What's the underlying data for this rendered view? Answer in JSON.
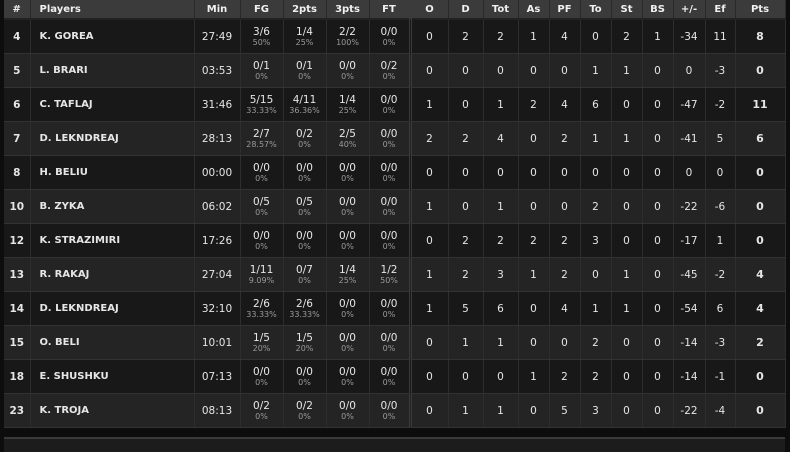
{
  "columns": [
    "#",
    "Players",
    "Min",
    "FG",
    "2pts",
    "3pts",
    "FT",
    "O",
    "D",
    "Tot",
    "As",
    "PF",
    "To",
    "St",
    "BS",
    "+/-",
    "Ef",
    "Pts"
  ],
  "rows": [
    {
      "no": "4",
      "name": "K. GOREA",
      "min": "27:49",
      "fg": "3/6",
      "fg_pct": "50%",
      "p2": "1/4",
      "p2_pct": "25%",
      "p3": "2/2",
      "p3_pct": "100%",
      "ft": "0/0",
      "ft_pct": "0%",
      "o": "0",
      "d": "2",
      "tot": "2",
      "as": "1",
      "pf": "4",
      "to": "0",
      "st": "2",
      "bs": "1",
      "pm": "-34",
      "ef": "11",
      "pts": "8"
    },
    {
      "no": "5",
      "name": "L. BRARI",
      "min": "03:53",
      "fg": "0/1",
      "fg_pct": "0%",
      "p2": "0/1",
      "p2_pct": "0%",
      "p3": "0/0",
      "p3_pct": "0%",
      "ft": "0/2",
      "ft_pct": "0%",
      "o": "0",
      "d": "0",
      "tot": "0",
      "as": "0",
      "pf": "0",
      "to": "1",
      "st": "1",
      "bs": "0",
      "pm": "0",
      "ef": "-3",
      "pts": "0"
    },
    {
      "no": "6",
      "name": "C. TAFLAJ",
      "min": "31:46",
      "fg": "5/15",
      "fg_pct": "33.33%",
      "p2": "4/11",
      "p2_pct": "36.36%",
      "p3": "1/4",
      "p3_pct": "25%",
      "ft": "0/0",
      "ft_pct": "0%",
      "o": "1",
      "d": "0",
      "tot": "1",
      "as": "2",
      "pf": "4",
      "to": "6",
      "st": "0",
      "bs": "0",
      "pm": "-47",
      "ef": "-2",
      "pts": "11"
    },
    {
      "no": "7",
      "name": "D. LEKNDREAJ",
      "min": "28:13",
      "fg": "2/7",
      "fg_pct": "28.57%",
      "p2": "0/2",
      "p2_pct": "0%",
      "p3": "2/5",
      "p3_pct": "40%",
      "ft": "0/0",
      "ft_pct": "0%",
      "o": "2",
      "d": "2",
      "tot": "4",
      "as": "0",
      "pf": "2",
      "to": "1",
      "st": "1",
      "bs": "0",
      "pm": "-41",
      "ef": "5",
      "pts": "6"
    },
    {
      "no": "8",
      "name": "H. BELIU",
      "min": "00:00",
      "fg": "0/0",
      "fg_pct": "0%",
      "p2": "0/0",
      "p2_pct": "0%",
      "p3": "0/0",
      "p3_pct": "0%",
      "ft": "0/0",
      "ft_pct": "0%",
      "o": "0",
      "d": "0",
      "tot": "0",
      "as": "0",
      "pf": "0",
      "to": "0",
      "st": "0",
      "bs": "0",
      "pm": "0",
      "ef": "0",
      "pts": "0"
    },
    {
      "no": "10",
      "name": "B. ZYKA",
      "min": "06:02",
      "fg": "0/5",
      "fg_pct": "0%",
      "p2": "0/5",
      "p2_pct": "0%",
      "p3": "0/0",
      "p3_pct": "0%",
      "ft": "0/0",
      "ft_pct": "0%",
      "o": "1",
      "d": "0",
      "tot": "1",
      "as": "0",
      "pf": "0",
      "to": "2",
      "st": "0",
      "bs": "0",
      "pm": "-22",
      "ef": "-6",
      "pts": "0"
    },
    {
      "no": "12",
      "name": "K. STRAZIMIRI",
      "min": "17:26",
      "fg": "0/0",
      "fg_pct": "0%",
      "p2": "0/0",
      "p2_pct": "0%",
      "p3": "0/0",
      "p3_pct": "0%",
      "ft": "0/0",
      "ft_pct": "0%",
      "o": "0",
      "d": "2",
      "tot": "2",
      "as": "2",
      "pf": "2",
      "to": "3",
      "st": "0",
      "bs": "0",
      "pm": "-17",
      "ef": "1",
      "pts": "0"
    },
    {
      "no": "13",
      "name": "R. RAKAJ",
      "min": "27:04",
      "fg": "1/11",
      "fg_pct": "9.09%",
      "p2": "0/7",
      "p2_pct": "0%",
      "p3": "1/4",
      "p3_pct": "25%",
      "ft": "1/2",
      "ft_pct": "50%",
      "o": "1",
      "d": "2",
      "tot": "3",
      "as": "1",
      "pf": "2",
      "to": "0",
      "st": "1",
      "bs": "0",
      "pm": "-45",
      "ef": "-2",
      "pts": "4"
    },
    {
      "no": "14",
      "name": "D. LEKNDREAJ",
      "min": "32:10",
      "fg": "2/6",
      "fg_pct": "33.33%",
      "p2": "2/6",
      "p2_pct": "33.33%",
      "p3": "0/0",
      "p3_pct": "0%",
      "ft": "0/0",
      "ft_pct": "0%",
      "o": "1",
      "d": "5",
      "tot": "6",
      "as": "0",
      "pf": "4",
      "to": "1",
      "st": "1",
      "bs": "0",
      "pm": "-54",
      "ef": "6",
      "pts": "4"
    },
    {
      "no": "15",
      "name": "O. BELI",
      "min": "10:01",
      "fg": "1/5",
      "fg_pct": "20%",
      "p2": "1/5",
      "p2_pct": "20%",
      "p3": "0/0",
      "p3_pct": "0%",
      "ft": "0/0",
      "ft_pct": "0%",
      "o": "0",
      "d": "1",
      "tot": "1",
      "as": "0",
      "pf": "0",
      "to": "2",
      "st": "0",
      "bs": "0",
      "pm": "-14",
      "ef": "-3",
      "pts": "2"
    },
    {
      "no": "18",
      "name": "E. SHUSHKU",
      "min": "07:13",
      "fg": "0/0",
      "fg_pct": "0%",
      "p2": "0/0",
      "p2_pct": "0%",
      "p3": "0/0",
      "p3_pct": "0%",
      "ft": "0/0",
      "ft_pct": "0%",
      "o": "0",
      "d": "0",
      "tot": "0",
      "as": "1",
      "pf": "2",
      "to": "2",
      "st": "0",
      "bs": "0",
      "pm": "-14",
      "ef": "-1",
      "pts": "0"
    },
    {
      "no": "23",
      "name": "K. TROJA",
      "min": "08:13",
      "fg": "0/2",
      "fg_pct": "0%",
      "p2": "0/2",
      "p2_pct": "0%",
      "p3": "0/0",
      "p3_pct": "0%",
      "ft": "0/0",
      "ft_pct": "0%",
      "o": "0",
      "d": "1",
      "tot": "1",
      "as": "0",
      "pf": "5",
      "to": "3",
      "st": "0",
      "bs": "0",
      "pm": "-22",
      "ef": "-4",
      "pts": "0"
    }
  ]
}
